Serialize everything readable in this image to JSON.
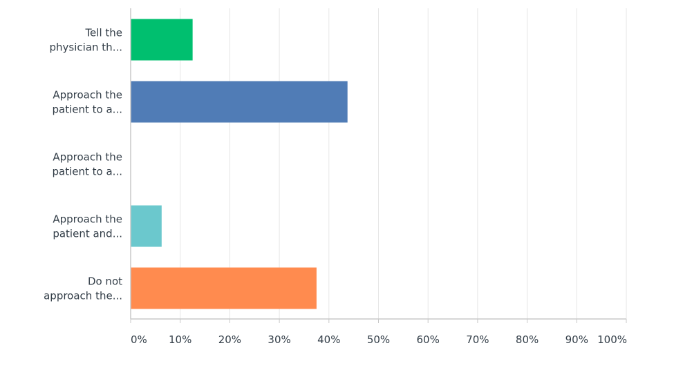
{
  "chart_data": {
    "type": "bar",
    "orientation": "horizontal",
    "categories": [
      [
        "Tell the",
        "physician th..."
      ],
      [
        "Approach the",
        "patient to a..."
      ],
      [
        "Approach the",
        "patient to a..."
      ],
      [
        "Approach the",
        "patient and..."
      ],
      [
        "Do not",
        "approach the..."
      ]
    ],
    "values": [
      12.5,
      43.75,
      0,
      6.25,
      37.5
    ],
    "colors": [
      "#00bf6f",
      "#507cb6",
      "#f9be00",
      "#6bc8cd",
      "#ff8b4f"
    ],
    "xlim": [
      0,
      100
    ],
    "ticks": [
      "0%",
      "10%",
      "20%",
      "30%",
      "40%",
      "50%",
      "60%",
      "70%",
      "80%",
      "90%",
      "100%"
    ],
    "grid": true,
    "gridColor": "#e6e6e6",
    "axisColor": "#c8c8c8",
    "legend": "none"
  }
}
